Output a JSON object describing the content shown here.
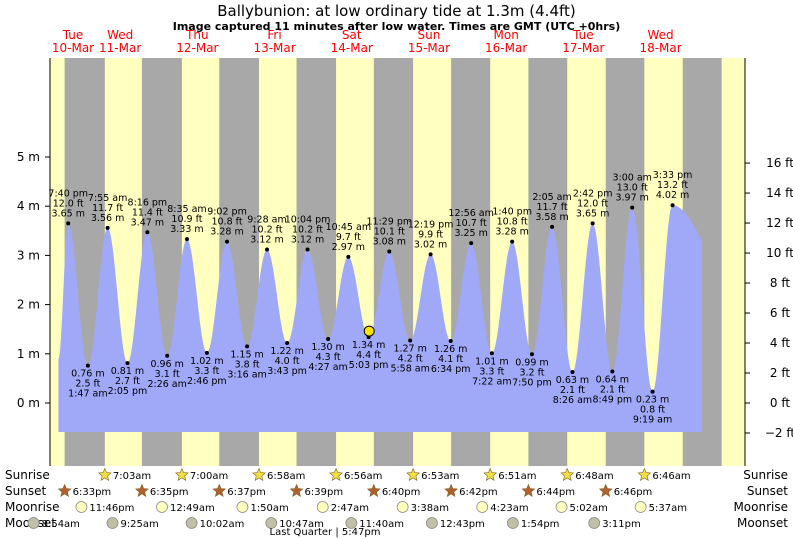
{
  "header": {
    "title": "Ballybunion: at low  ordinary tide at 1.3m (4.4ft)",
    "subtitle": "Image captured 11 minutes after low water. Times are GMT (UTC +0hrs)"
  },
  "colors": {
    "day": "#ffffc0",
    "night": "#a8a8a8",
    "tide_fill": "#a0a8f8",
    "date_text": "#ff0000",
    "sun_star": "#f0e040",
    "set_star": "#b06030",
    "moon_full": "#ffffc0",
    "moon_dark": "#c0c0a8"
  },
  "chart_data": {
    "type": "area",
    "y_left": {
      "unit": "m",
      "ticks": [
        0,
        1,
        2,
        3,
        4,
        5
      ],
      "tick_labels": [
        "0 m",
        "1 m",
        "2 m",
        "3 m",
        "4 m",
        "5 m"
      ],
      "range": [
        -0.7,
        5.25
      ]
    },
    "y_right": {
      "unit": "ft",
      "ticks": [
        -2,
        0,
        2,
        4,
        6,
        8,
        10,
        12,
        14,
        16
      ],
      "tick_labels": [
        "−2 ft",
        "0 ft",
        "2 ft",
        "4 ft",
        "6 ft",
        "8 ft",
        "10 ft",
        "12 ft",
        "14 ft",
        "16 ft"
      ]
    },
    "days": [
      {
        "day": "Tue",
        "date": "10-Mar"
      },
      {
        "day": "Wed",
        "date": "11-Mar"
      },
      {
        "day": "Thu",
        "date": "12-Mar"
      },
      {
        "day": "Fri",
        "date": "13-Mar"
      },
      {
        "day": "Sat",
        "date": "14-Mar"
      },
      {
        "day": "Sun",
        "date": "15-Mar"
      },
      {
        "day": "Mon",
        "date": "16-Mar"
      },
      {
        "day": "Tue",
        "date": "17-Mar"
      },
      {
        "day": "Wed",
        "date": "18-Mar"
      }
    ],
    "tides": [
      {
        "kind": "high",
        "time": "7:40 pm",
        "ft": "12.0 ft",
        "m": "3.65 m",
        "value": 3.65,
        "day": 0,
        "hour": 19.67
      },
      {
        "kind": "low",
        "time": "1:47 am",
        "ft": "2.5 ft",
        "m": "0.76 m",
        "value": 0.76,
        "day": 1,
        "hour": 1.78
      },
      {
        "kind": "high",
        "time": "7:55 am",
        "ft": "11.7 ft",
        "m": "3.56 m",
        "value": 3.56,
        "day": 1,
        "hour": 7.92
      },
      {
        "kind": "low",
        "time": "2:05 pm",
        "ft": "2.7 ft",
        "m": "0.81 m",
        "value": 0.81,
        "day": 1,
        "hour": 14.08
      },
      {
        "kind": "high",
        "time": "8:16 pm",
        "ft": "11.4 ft",
        "m": "3.47 m",
        "value": 3.47,
        "day": 1,
        "hour": 20.27
      },
      {
        "kind": "low",
        "time": "2:26 am",
        "ft": "3.1 ft",
        "m": "0.96 m",
        "value": 0.96,
        "day": 2,
        "hour": 2.43
      },
      {
        "kind": "high",
        "time": "8:35 am",
        "ft": "10.9 ft",
        "m": "3.33 m",
        "value": 3.33,
        "day": 2,
        "hour": 8.58
      },
      {
        "kind": "low",
        "time": "2:46 pm",
        "ft": "3.3 ft",
        "m": "1.02 m",
        "value": 1.02,
        "day": 2,
        "hour": 14.77
      },
      {
        "kind": "high",
        "time": "9:02 pm",
        "ft": "10.8 ft",
        "m": "3.28 m",
        "value": 3.28,
        "day": 2,
        "hour": 21.03
      },
      {
        "kind": "low",
        "time": "3:16 am",
        "ft": "3.8 ft",
        "m": "1.15 m",
        "value": 1.15,
        "day": 3,
        "hour": 3.27
      },
      {
        "kind": "high",
        "time": "9:28 am",
        "ft": "10.2 ft",
        "m": "3.12 m",
        "value": 3.12,
        "day": 3,
        "hour": 9.47
      },
      {
        "kind": "low",
        "time": "3:43 pm",
        "ft": "4.0 ft",
        "m": "1.22 m",
        "value": 1.22,
        "day": 3,
        "hour": 15.72
      },
      {
        "kind": "high",
        "time": "10:04 pm",
        "ft": "10.2 ft",
        "m": "3.12 m",
        "value": 3.12,
        "day": 3,
        "hour": 22.07
      },
      {
        "kind": "low",
        "time": "4:27 am",
        "ft": "4.3 ft",
        "m": "1.30 m",
        "value": 1.3,
        "day": 4,
        "hour": 4.45
      },
      {
        "kind": "high",
        "time": "10:45 am",
        "ft": "9.7 ft",
        "m": "2.97 m",
        "value": 2.97,
        "day": 4,
        "hour": 10.75
      },
      {
        "kind": "low",
        "time": "5:03 pm",
        "ft": "4.4 ft",
        "m": "1.34 m",
        "value": 1.34,
        "day": 4,
        "hour": 17.05
      },
      {
        "kind": "high",
        "time": "11:29 pm",
        "ft": "10.1 ft",
        "m": "3.08 m",
        "value": 3.08,
        "day": 4,
        "hour": 23.48
      },
      {
        "kind": "low",
        "time": "5:58 am",
        "ft": "4.2 ft",
        "m": "1.27 m",
        "value": 1.27,
        "day": 5,
        "hour": 5.97
      },
      {
        "kind": "high",
        "time": "12:19 pm",
        "ft": "9.9 ft",
        "m": "3.02 m",
        "value": 3.02,
        "day": 5,
        "hour": 12.32
      },
      {
        "kind": "low",
        "time": "6:34 pm",
        "ft": "4.1 ft",
        "m": "1.26 m",
        "value": 1.26,
        "day": 5,
        "hour": 18.57
      },
      {
        "kind": "high",
        "time": "12:56 am",
        "ft": "10.7 ft",
        "m": "3.25 m",
        "value": 3.25,
        "day": 6,
        "hour": 0.93
      },
      {
        "kind": "low",
        "time": "7:22 am",
        "ft": "3.3 ft",
        "m": "1.01 m",
        "value": 1.01,
        "day": 6,
        "hour": 7.37
      },
      {
        "kind": "high",
        "time": "1:40 pm",
        "ft": "10.8 ft",
        "m": "3.28 m",
        "value": 3.28,
        "day": 6,
        "hour": 13.67
      },
      {
        "kind": "low",
        "time": "7:50 pm",
        "ft": "3.2 ft",
        "m": "0.99 m",
        "value": 0.99,
        "day": 6,
        "hour": 19.83
      },
      {
        "kind": "high",
        "time": "2:05 am",
        "ft": "11.7 ft",
        "m": "3.58 m",
        "value": 3.58,
        "day": 7,
        "hour": 2.08
      },
      {
        "kind": "low",
        "time": "8:26 am",
        "ft": "2.1 ft",
        "m": "0.63 m",
        "value": 0.63,
        "day": 7,
        "hour": 8.43
      },
      {
        "kind": "high",
        "time": "2:42 pm",
        "ft": "12.0 ft",
        "m": "3.65 m",
        "value": 3.65,
        "day": 7,
        "hour": 14.7
      },
      {
        "kind": "low",
        "time": "8:49 pm",
        "ft": "2.1 ft",
        "m": "0.64 m",
        "value": 0.64,
        "day": 7,
        "hour": 20.82
      },
      {
        "kind": "high",
        "time": "3:00 am",
        "ft": "13.0 ft",
        "m": "3.97 m",
        "value": 3.97,
        "day": 8,
        "hour": 3.0
      },
      {
        "kind": "low",
        "time": "9:19 am",
        "ft": "0.8 ft",
        "m": "0.23 m",
        "value": 0.23,
        "day": 8,
        "hour": 9.32
      },
      {
        "kind": "high",
        "time": "3:33 pm",
        "ft": "13.2 ft",
        "m": "4.02 m",
        "value": 4.02,
        "day": 8,
        "hour": 15.55
      }
    ],
    "current_marker": {
      "day": 4,
      "hour": 17.23,
      "value": 1.34
    }
  },
  "events": {
    "row_labels": [
      "Sunrise",
      "Sunset",
      "Moonrise",
      "Moonset"
    ],
    "sunrise": [
      {
        "day": 1,
        "hour": 7.05,
        "label": "7:03am"
      },
      {
        "day": 2,
        "hour": 7.0,
        "label": "7:00am"
      },
      {
        "day": 3,
        "hour": 6.97,
        "label": "6:58am"
      },
      {
        "day": 4,
        "hour": 6.93,
        "label": "6:56am"
      },
      {
        "day": 5,
        "hour": 6.88,
        "label": "6:53am"
      },
      {
        "day": 6,
        "hour": 6.85,
        "label": "6:51am"
      },
      {
        "day": 7,
        "hour": 6.8,
        "label": "6:48am"
      },
      {
        "day": 8,
        "hour": 6.77,
        "label": "6:46am"
      }
    ],
    "sunset": [
      {
        "day": 0,
        "hour": 18.55,
        "label": "6:33pm"
      },
      {
        "day": 1,
        "hour": 18.58,
        "label": "6:35pm"
      },
      {
        "day": 2,
        "hour": 18.62,
        "label": "6:37pm"
      },
      {
        "day": 3,
        "hour": 18.65,
        "label": "6:39pm"
      },
      {
        "day": 4,
        "hour": 18.67,
        "label": "6:40pm"
      },
      {
        "day": 5,
        "hour": 18.7,
        "label": "6:42pm"
      },
      {
        "day": 6,
        "hour": 18.73,
        "label": "6:44pm"
      },
      {
        "day": 7,
        "hour": 18.77,
        "label": "6:46pm"
      }
    ],
    "moonrise": [
      {
        "day": 0,
        "hour": 23.77,
        "label": "11:46pm"
      },
      {
        "day": 2,
        "hour": 0.82,
        "label": "12:49am"
      },
      {
        "day": 3,
        "hour": 1.83,
        "label": "1:50am"
      },
      {
        "day": 4,
        "hour": 2.78,
        "label": "2:47am"
      },
      {
        "day": 5,
        "hour": 3.63,
        "label": "3:38am"
      },
      {
        "day": 6,
        "hour": 4.38,
        "label": "4:23am"
      },
      {
        "day": 7,
        "hour": 5.03,
        "label": "5:02am"
      },
      {
        "day": 8,
        "hour": 5.62,
        "label": "5:37am"
      }
    ],
    "moonset": [
      {
        "day": 0,
        "hour": 8.9,
        "label": "8:54am"
      },
      {
        "day": 1,
        "hour": 9.42,
        "label": "9:25am"
      },
      {
        "day": 2,
        "hour": 10.03,
        "label": "10:02am"
      },
      {
        "day": 3,
        "hour": 10.78,
        "label": "10:47am"
      },
      {
        "day": 4,
        "hour": 11.67,
        "label": "11:40am"
      },
      {
        "day": 5,
        "hour": 12.72,
        "label": "12:43pm"
      },
      {
        "day": 6,
        "hour": 13.9,
        "label": "1:54pm"
      },
      {
        "day": 7,
        "hour": 15.18,
        "label": "3:11pm"
      }
    ],
    "moon_phase_note": "Last Quarter | 5:47pm"
  }
}
